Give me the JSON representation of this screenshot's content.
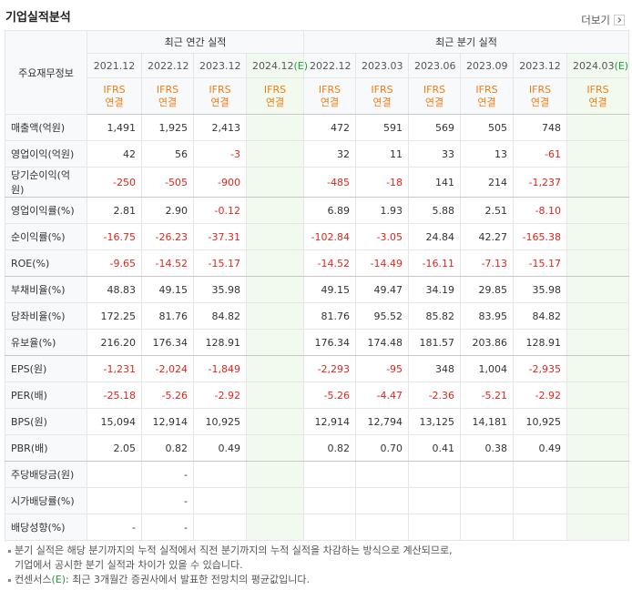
{
  "header": {
    "title": "기업실적분석",
    "more": "더보기"
  },
  "table": {
    "corner": "주요재무정보",
    "groups": [
      {
        "label": "최근 연간 실적",
        "columns": [
          {
            "period": "2021.12",
            "basis": [
              "IFRS",
              "연결"
            ]
          },
          {
            "period": "2022.12",
            "basis": [
              "IFRS",
              "연결"
            ]
          },
          {
            "period": "2023.12",
            "basis": [
              "IFRS",
              "연결"
            ]
          },
          {
            "period": "2024.12",
            "estimate": "(E)",
            "basis": [
              "IFRS",
              "연결"
            ]
          }
        ]
      },
      {
        "label": "최근 분기 실적",
        "columns": [
          {
            "period": "2022.12",
            "basis": [
              "IFRS",
              "연결"
            ]
          },
          {
            "period": "2023.03",
            "basis": [
              "IFRS",
              "연결"
            ]
          },
          {
            "period": "2023.06",
            "basis": [
              "IFRS",
              "연결"
            ]
          },
          {
            "period": "2023.09",
            "basis": [
              "IFRS",
              "연결"
            ]
          },
          {
            "period": "2023.12",
            "basis": [
              "IFRS",
              "연결"
            ]
          },
          {
            "period": "2024.03",
            "estimate": "(E)",
            "basis": [
              "IFRS",
              "연결"
            ]
          }
        ]
      }
    ],
    "rows": [
      {
        "label": "매출액(억원)",
        "values": [
          "1,491",
          "1,925",
          "2,413",
          null,
          "472",
          "591",
          "569",
          "505",
          "748",
          null
        ]
      },
      {
        "label": "영업이익(억원)",
        "values": [
          "42",
          "56",
          "-3",
          null,
          "32",
          "11",
          "33",
          "13",
          "-61",
          null
        ]
      },
      {
        "label": "당기순이익(억원)",
        "values": [
          "-250",
          "-505",
          "-900",
          null,
          "-485",
          "-18",
          "141",
          "214",
          "-1,237",
          null
        ]
      },
      {
        "label": "영업이익률(%)",
        "values": [
          "2.81",
          "2.90",
          "-0.12",
          null,
          "6.89",
          "1.93",
          "5.88",
          "2.51",
          "-8.10",
          null
        ]
      },
      {
        "label": "순이익률(%)",
        "values": [
          "-16.75",
          "-26.23",
          "-37.31",
          null,
          "-102.84",
          "-3.05",
          "24.84",
          "42.27",
          "-165.38",
          null
        ]
      },
      {
        "label": "ROE(%)",
        "values": [
          "-9.65",
          "-14.52",
          "-15.17",
          null,
          "-14.52",
          "-14.49",
          "-16.11",
          "-7.13",
          "-15.17",
          null
        ]
      },
      {
        "label": "부채비율(%)",
        "values": [
          "48.83",
          "49.15",
          "35.98",
          null,
          "49.15",
          "49.47",
          "34.19",
          "29.85",
          "35.98",
          null
        ]
      },
      {
        "label": "당좌비율(%)",
        "values": [
          "172.25",
          "81.76",
          "84.82",
          null,
          "81.76",
          "95.52",
          "85.82",
          "83.95",
          "84.82",
          null
        ]
      },
      {
        "label": "유보율(%)",
        "values": [
          "216.20",
          "176.34",
          "128.91",
          null,
          "176.34",
          "174.48",
          "181.57",
          "203.86",
          "128.91",
          null
        ]
      },
      {
        "label": "EPS(원)",
        "values": [
          "-1,231",
          "-2,024",
          "-1,849",
          null,
          "-2,293",
          "-95",
          "348",
          "1,004",
          "-2,935",
          null
        ]
      },
      {
        "label": "PER(배)",
        "values": [
          "-25.18",
          "-5.26",
          "-2.92",
          null,
          "-5.26",
          "-4.47",
          "-2.36",
          "-5.21",
          "-2.92",
          null
        ]
      },
      {
        "label": "BPS(원)",
        "values": [
          "15,094",
          "12,914",
          "10,925",
          null,
          "12,914",
          "12,794",
          "13,125",
          "14,181",
          "10,925",
          null
        ]
      },
      {
        "label": "PBR(배)",
        "values": [
          "2.05",
          "0.82",
          "0.49",
          null,
          "0.82",
          "0.70",
          "0.41",
          "0.38",
          "0.49",
          null
        ]
      },
      {
        "label": "주당배당금(원)",
        "values": [
          null,
          "-",
          null,
          null,
          null,
          null,
          null,
          null,
          null,
          null
        ]
      },
      {
        "label": "시가배당률(%)",
        "values": [
          null,
          "-",
          null,
          null,
          null,
          null,
          null,
          null,
          null,
          null
        ]
      },
      {
        "label": "배당성향(%)",
        "values": [
          "-",
          "-",
          null,
          null,
          null,
          null,
          null,
          null,
          null,
          null
        ]
      }
    ]
  },
  "notes": [
    {
      "lines": [
        "분기 실적은 해당 분기까지의 누적 실적에서 직전 분기까지의 누적 실적을 차감하는 방식으로 계산되므로,",
        "기업에서 공시한 분기 실적과 차이가 있을 수 있습니다."
      ]
    },
    {
      "lines": [
        "컨센서스",
        "(E)",
        ": 최근 3개월간 증권사에서 발표한 전망치의 평균값입니다."
      ]
    }
  ]
}
